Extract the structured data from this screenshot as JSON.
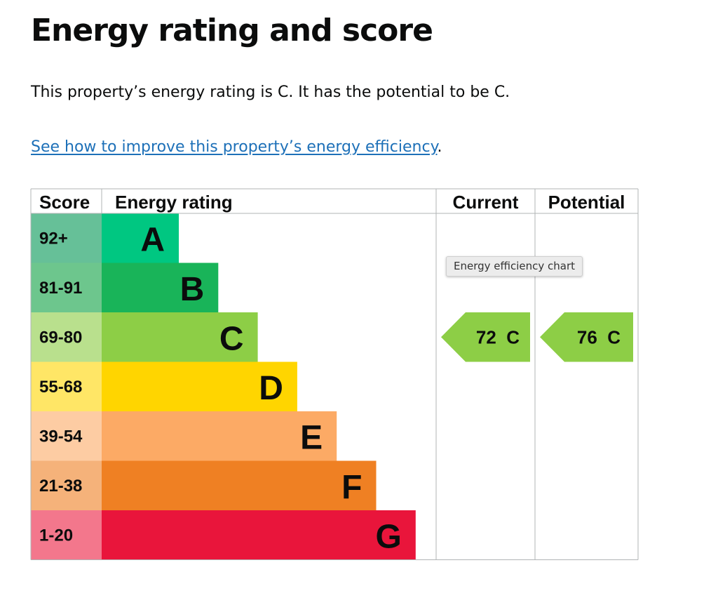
{
  "page": {
    "heading": "Energy rating and score",
    "summary": "This property’s energy rating is C. It has the potential to be C.",
    "improve_link": "See how to improve this property’s energy efficiency",
    "improve_link_suffix": "."
  },
  "tooltip": "Energy efficiency chart",
  "chart_data": {
    "type": "table",
    "columns": [
      "Score",
      "Energy rating",
      "Current",
      "Potential"
    ],
    "bands": [
      {
        "letter": "A",
        "score": "92+",
        "color": "#008054",
        "score_bg": "#66c098",
        "bar_color": "#00c781"
      },
      {
        "letter": "B",
        "score": "81-91",
        "color": "#19b459",
        "score_bg": "#6dc68d",
        "bar_color": "#19b459"
      },
      {
        "letter": "C",
        "score": "69-80",
        "color": "#8dce46",
        "score_bg": "#b9e08d",
        "bar_color": "#8dce46"
      },
      {
        "letter": "D",
        "score": "55-68",
        "color": "#ffd500",
        "score_bg": "#ffe666",
        "bar_color": "#ffd500"
      },
      {
        "letter": "E",
        "score": "39-54",
        "color": "#fcaa65",
        "score_bg": "#fdcca3",
        "bar_color": "#fcaa65"
      },
      {
        "letter": "F",
        "score": "21-38",
        "color": "#ef8023",
        "score_bg": "#f5b27a",
        "bar_color": "#ef8023"
      },
      {
        "letter": "G",
        "score": "1-20",
        "color": "#e9153b",
        "score_bg": "#f3778c",
        "bar_color": "#e9153b"
      }
    ],
    "current": {
      "score": 72,
      "band": "C",
      "label": "72  C",
      "color": "#8dce46"
    },
    "potential": {
      "score": 76,
      "band": "C",
      "label": "76  C",
      "color": "#8dce46"
    }
  }
}
